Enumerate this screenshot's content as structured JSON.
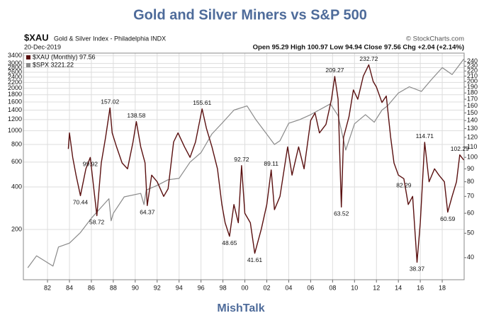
{
  "chart_data": {
    "type": "line",
    "title": "Gold and Silver Miners vs S&P 500",
    "symbol": "$XAU",
    "description": "Gold & Silver Index - Philadelphia INDX",
    "source": "© StockCharts.com",
    "date": "20-Dec-2019",
    "quote": "Open 95.29 High 100.97 Low 94.94 Close 97.56 Chg +2.04 (+2.14%)",
    "footer": "MishTalk",
    "log_scale": true,
    "grid": true,
    "legend": "upper left",
    "xlim": [
      1979.8,
      2020.0
    ],
    "xticks": [
      {
        "value": 1982,
        "label": "82"
      },
      {
        "value": 1984,
        "label": "84"
      },
      {
        "value": 1986,
        "label": "86"
      },
      {
        "value": 1988,
        "label": "88"
      },
      {
        "value": 1990,
        "label": "90"
      },
      {
        "value": 1992,
        "label": "92"
      },
      {
        "value": 1994,
        "label": "94"
      },
      {
        "value": 1996,
        "label": "96"
      },
      {
        "value": 1998,
        "label": "98"
      },
      {
        "value": 2000,
        "label": "00"
      },
      {
        "value": 2002,
        "label": "02"
      },
      {
        "value": 2004,
        "label": "04"
      },
      {
        "value": 2006,
        "label": "06"
      },
      {
        "value": 2008,
        "label": "08"
      },
      {
        "value": 2010,
        "label": "10"
      },
      {
        "value": 2012,
        "label": "12"
      },
      {
        "value": 2014,
        "label": "14"
      },
      {
        "value": 2016,
        "label": "16"
      },
      {
        "value": 2018,
        "label": "18"
      }
    ],
    "ylim": [
      88,
      3550
    ],
    "yticks": [
      200,
      400,
      600,
      800,
      1000,
      1200,
      1400,
      1600,
      1800,
      2000,
      2200,
      2400,
      2600,
      2800,
      3000,
      3400
    ],
    "y2lim": [
      32.7,
      259
    ],
    "y2ticks": [
      40,
      50,
      60,
      70,
      80,
      90,
      100,
      110,
      120,
      130,
      140,
      150,
      160,
      170,
      180,
      190,
      200,
      210,
      220,
      230,
      240
    ],
    "series": [
      {
        "name": "$XAU (Monthly) 97.56",
        "color": "#5a1010",
        "axis": "y2",
        "x": [
          1983.9,
          1984.0,
          1984.3,
          1984.6,
          1985.0,
          1985.5,
          1985.9,
          1986.5,
          1986.9,
          1987.3,
          1987.7,
          1987.9,
          1988.3,
          1988.8,
          1989.3,
          1989.8,
          1990.1,
          1990.5,
          1990.9,
          1991.1,
          1991.5,
          1992.0,
          1992.6,
          1993.0,
          1993.5,
          1993.9,
          1994.5,
          1995.0,
          1995.5,
          1996.1,
          1996.5,
          1997.0,
          1997.5,
          1997.9,
          1998.2,
          1998.6,
          1999.0,
          1999.4,
          1999.7,
          2000.0,
          2000.5,
          2000.9,
          2001.5,
          2002.0,
          2002.4,
          2002.7,
          2003.2,
          2003.9,
          2004.3,
          2004.9,
          2005.4,
          2006.0,
          2006.4,
          2006.8,
          2007.4,
          2007.9,
          2008.2,
          2008.5,
          2008.8,
          2009.0,
          2009.5,
          2009.9,
          2010.3,
          2010.8,
          2011.3,
          2011.7,
          2012.0,
          2012.5,
          2012.9,
          2013.3,
          2013.6,
          2014.0,
          2014.5,
          2014.9,
          2015.3,
          2015.7,
          2016.0,
          2016.4,
          2016.8,
          2017.3,
          2017.7,
          2018.2,
          2018.5,
          2018.9,
          2019.3,
          2019.6,
          2019.97
        ],
        "values": [
          108,
          125,
          100,
          85,
          70.44,
          90,
          99.92,
          58.72,
          95,
          120,
          157.02,
          125,
          110,
          95,
          90,
          115,
          138.58,
          110,
          95,
          64.37,
          85,
          80,
          70,
          75,
          115,
          125,
          110,
          100,
          115,
          155.61,
          130,
          110,
          90,
          65,
          55,
          48.65,
          65,
          55,
          92.72,
          60,
          55,
          41.61,
          52,
          65,
          89.11,
          62,
          70,
          110,
          85,
          110,
          90,
          140,
          150,
          125,
          135,
          170,
          209.27,
          170,
          63.52,
          120,
          145,
          185,
          170,
          210,
          232.72,
          200,
          190,
          165,
          175,
          120,
          95,
          85,
          82.29,
          65,
          70,
          38.37,
          55,
          114.71,
          80,
          90,
          85,
          80,
          60.59,
          70,
          80,
          102.29,
          97.56
        ]
      },
      {
        "name": "$SPX 3221.22",
        "color": "#8a8a8a",
        "axis": "y",
        "x": [
          1980.2,
          1981.0,
          1982.5,
          1983.0,
          1984.0,
          1985.0,
          1986.0,
          1987.6,
          1987.8,
          1988.0,
          1989.0,
          1990.5,
          1990.8,
          1991.0,
          1992.0,
          1993.0,
          1994.0,
          1995.0,
          1996.0,
          1997.0,
          1998.0,
          1999.0,
          2000.2,
          2001.0,
          2002.7,
          2003.2,
          2004.0,
          2005.0,
          2006.0,
          2007.8,
          2008.5,
          2009.2,
          2010.0,
          2011.0,
          2011.8,
          2012.5,
          2013.0,
          2014.0,
          2015.0,
          2016.1,
          2017.0,
          2018.0,
          2018.9,
          2019.97
        ],
        "values": [
          107,
          130,
          110,
          150,
          160,
          190,
          240,
          330,
          230,
          260,
          340,
          360,
          300,
          380,
          410,
          450,
          460,
          600,
          700,
          950,
          1150,
          1400,
          1500,
          1200,
          800,
          850,
          1130,
          1200,
          1300,
          1550,
          1280,
          730,
          1120,
          1300,
          1150,
          1400,
          1500,
          1850,
          2050,
          1900,
          2300,
          2800,
          2500,
          3221.22
        ]
      }
    ],
    "annotations": [
      {
        "x": 1987.7,
        "value": 157.02
      },
      {
        "x": 1985.9,
        "value": 99.92
      },
      {
        "x": 1985.0,
        "value": 70.44
      },
      {
        "x": 1986.5,
        "value": 58.72
      },
      {
        "x": 1990.1,
        "value": 138.58
      },
      {
        "x": 1991.1,
        "value": 64.37
      },
      {
        "x": 1996.1,
        "value": 155.61
      },
      {
        "x": 1999.7,
        "value": 92.72
      },
      {
        "x": 1998.6,
        "value": 48.65
      },
      {
        "x": 2000.9,
        "value": 41.61
      },
      {
        "x": 2002.4,
        "value": 89.11
      },
      {
        "x": 2008.2,
        "value": 209.27
      },
      {
        "x": 2008.8,
        "value": 63.52
      },
      {
        "x": 2011.3,
        "value": 232.72
      },
      {
        "x": 2014.5,
        "value": 82.29
      },
      {
        "x": 2016.4,
        "value": 114.71
      },
      {
        "x": 2015.7,
        "value": 38.37
      },
      {
        "x": 2018.5,
        "value": 60.59
      },
      {
        "x": 2019.6,
        "value": 102.29
      }
    ]
  }
}
